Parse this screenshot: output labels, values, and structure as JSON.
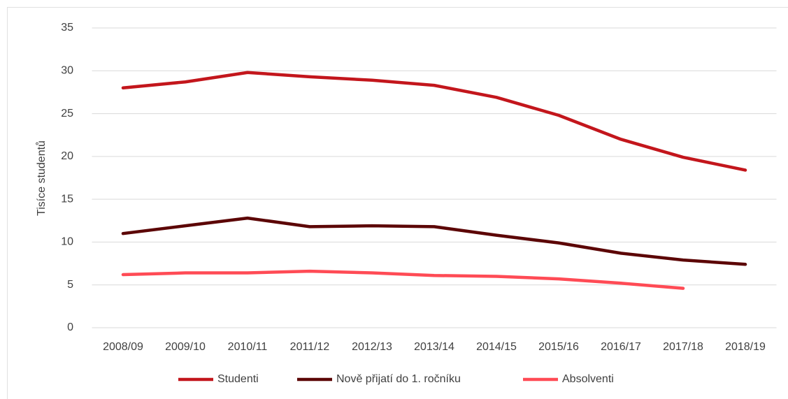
{
  "chart_data": {
    "type": "line",
    "y_label": "Tisíce studentů",
    "categories": [
      "2008/09",
      "2009/10",
      "2010/11",
      "2011/12",
      "2012/13",
      "2013/14",
      "2014/15",
      "2015/16",
      "2016/17",
      "2017/18",
      "2018/19"
    ],
    "series": [
      {
        "name": "Studenti",
        "color": "#c3161c",
        "values": [
          28.0,
          28.7,
          29.8,
          29.3,
          28.9,
          28.3,
          26.9,
          24.8,
          22.0,
          19.9,
          18.4
        ]
      },
      {
        "name": "Nově přijatí do 1. ročníku",
        "color": "#5c0606",
        "values": [
          11.0,
          11.9,
          12.8,
          11.8,
          11.9,
          11.8,
          10.8,
          9.9,
          8.7,
          7.9,
          7.4
        ]
      },
      {
        "name": "Absolventi",
        "color": "#ff4b55",
        "values": [
          6.2,
          6.4,
          6.4,
          6.6,
          6.4,
          6.1,
          6.0,
          5.7,
          5.2,
          4.6,
          null
        ]
      }
    ],
    "ylim": [
      0,
      35
    ],
    "yticks": [
      0,
      5,
      10,
      15,
      20,
      25,
      30,
      35
    ],
    "grid": true,
    "legend": "bottom"
  }
}
